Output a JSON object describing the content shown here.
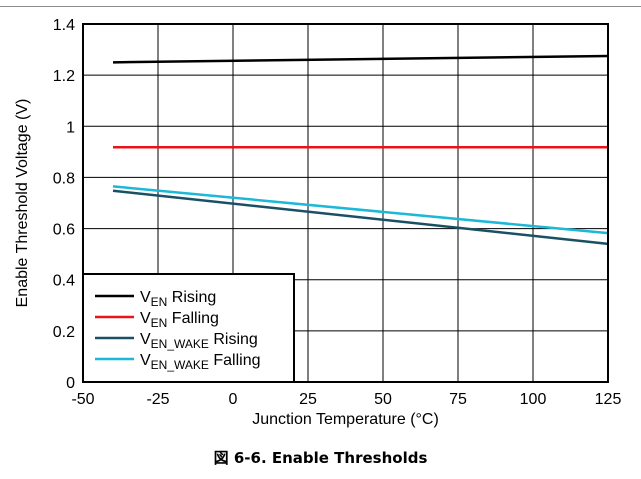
{
  "figure": {
    "caption_prefix": "図",
    "caption_text": "6-6. Enable Thresholds"
  },
  "chart_data": {
    "type": "line",
    "title": "",
    "xlabel": "Junction Temperature (°C)",
    "ylabel": "Enable Threshold Voltage (V)",
    "xlim": [
      -50,
      125
    ],
    "ylim": [
      0,
      1.4
    ],
    "xticks": [
      -50,
      -25,
      0,
      25,
      50,
      75,
      100,
      125
    ],
    "yticks": [
      0,
      0.2,
      0.4,
      0.6,
      0.8,
      1,
      1.2,
      1.4
    ],
    "xtick_labels": [
      "-50",
      "-25",
      "0",
      "25",
      "50",
      "75",
      "100",
      "125"
    ],
    "ytick_labels": [
      "0",
      "0.2",
      "0.4",
      "0.6",
      "0.8",
      "1",
      "1.2",
      "1.4"
    ],
    "grid": true,
    "legend_position": "bottom-left",
    "series": [
      {
        "name": "VEN Rising",
        "legend_main": "V",
        "legend_sub": "EN",
        "legend_suffix": " Rising",
        "color": "#000000",
        "x": [
          -40,
          125
        ],
        "y": [
          1.25,
          1.275
        ]
      },
      {
        "name": "VEN Falling",
        "legend_main": "V",
        "legend_sub": "EN",
        "legend_suffix": " Falling",
        "color": "#e8141a",
        "x": [
          -40,
          125
        ],
        "y": [
          0.918,
          0.918
        ]
      },
      {
        "name": "VEN_WAKE Rising",
        "legend_main": "V",
        "legend_sub": "EN_WAKE",
        "legend_suffix": " Rising",
        "color": "#1a5064",
        "x": [
          -40,
          125
        ],
        "y": [
          0.748,
          0.54
        ]
      },
      {
        "name": "VEN_WAKE Falling",
        "legend_main": "V",
        "legend_sub": "EN_WAKE",
        "legend_suffix": " Falling",
        "color": "#1cb8d8",
        "x": [
          -40,
          125
        ],
        "y": [
          0.765,
          0.582
        ]
      }
    ]
  }
}
